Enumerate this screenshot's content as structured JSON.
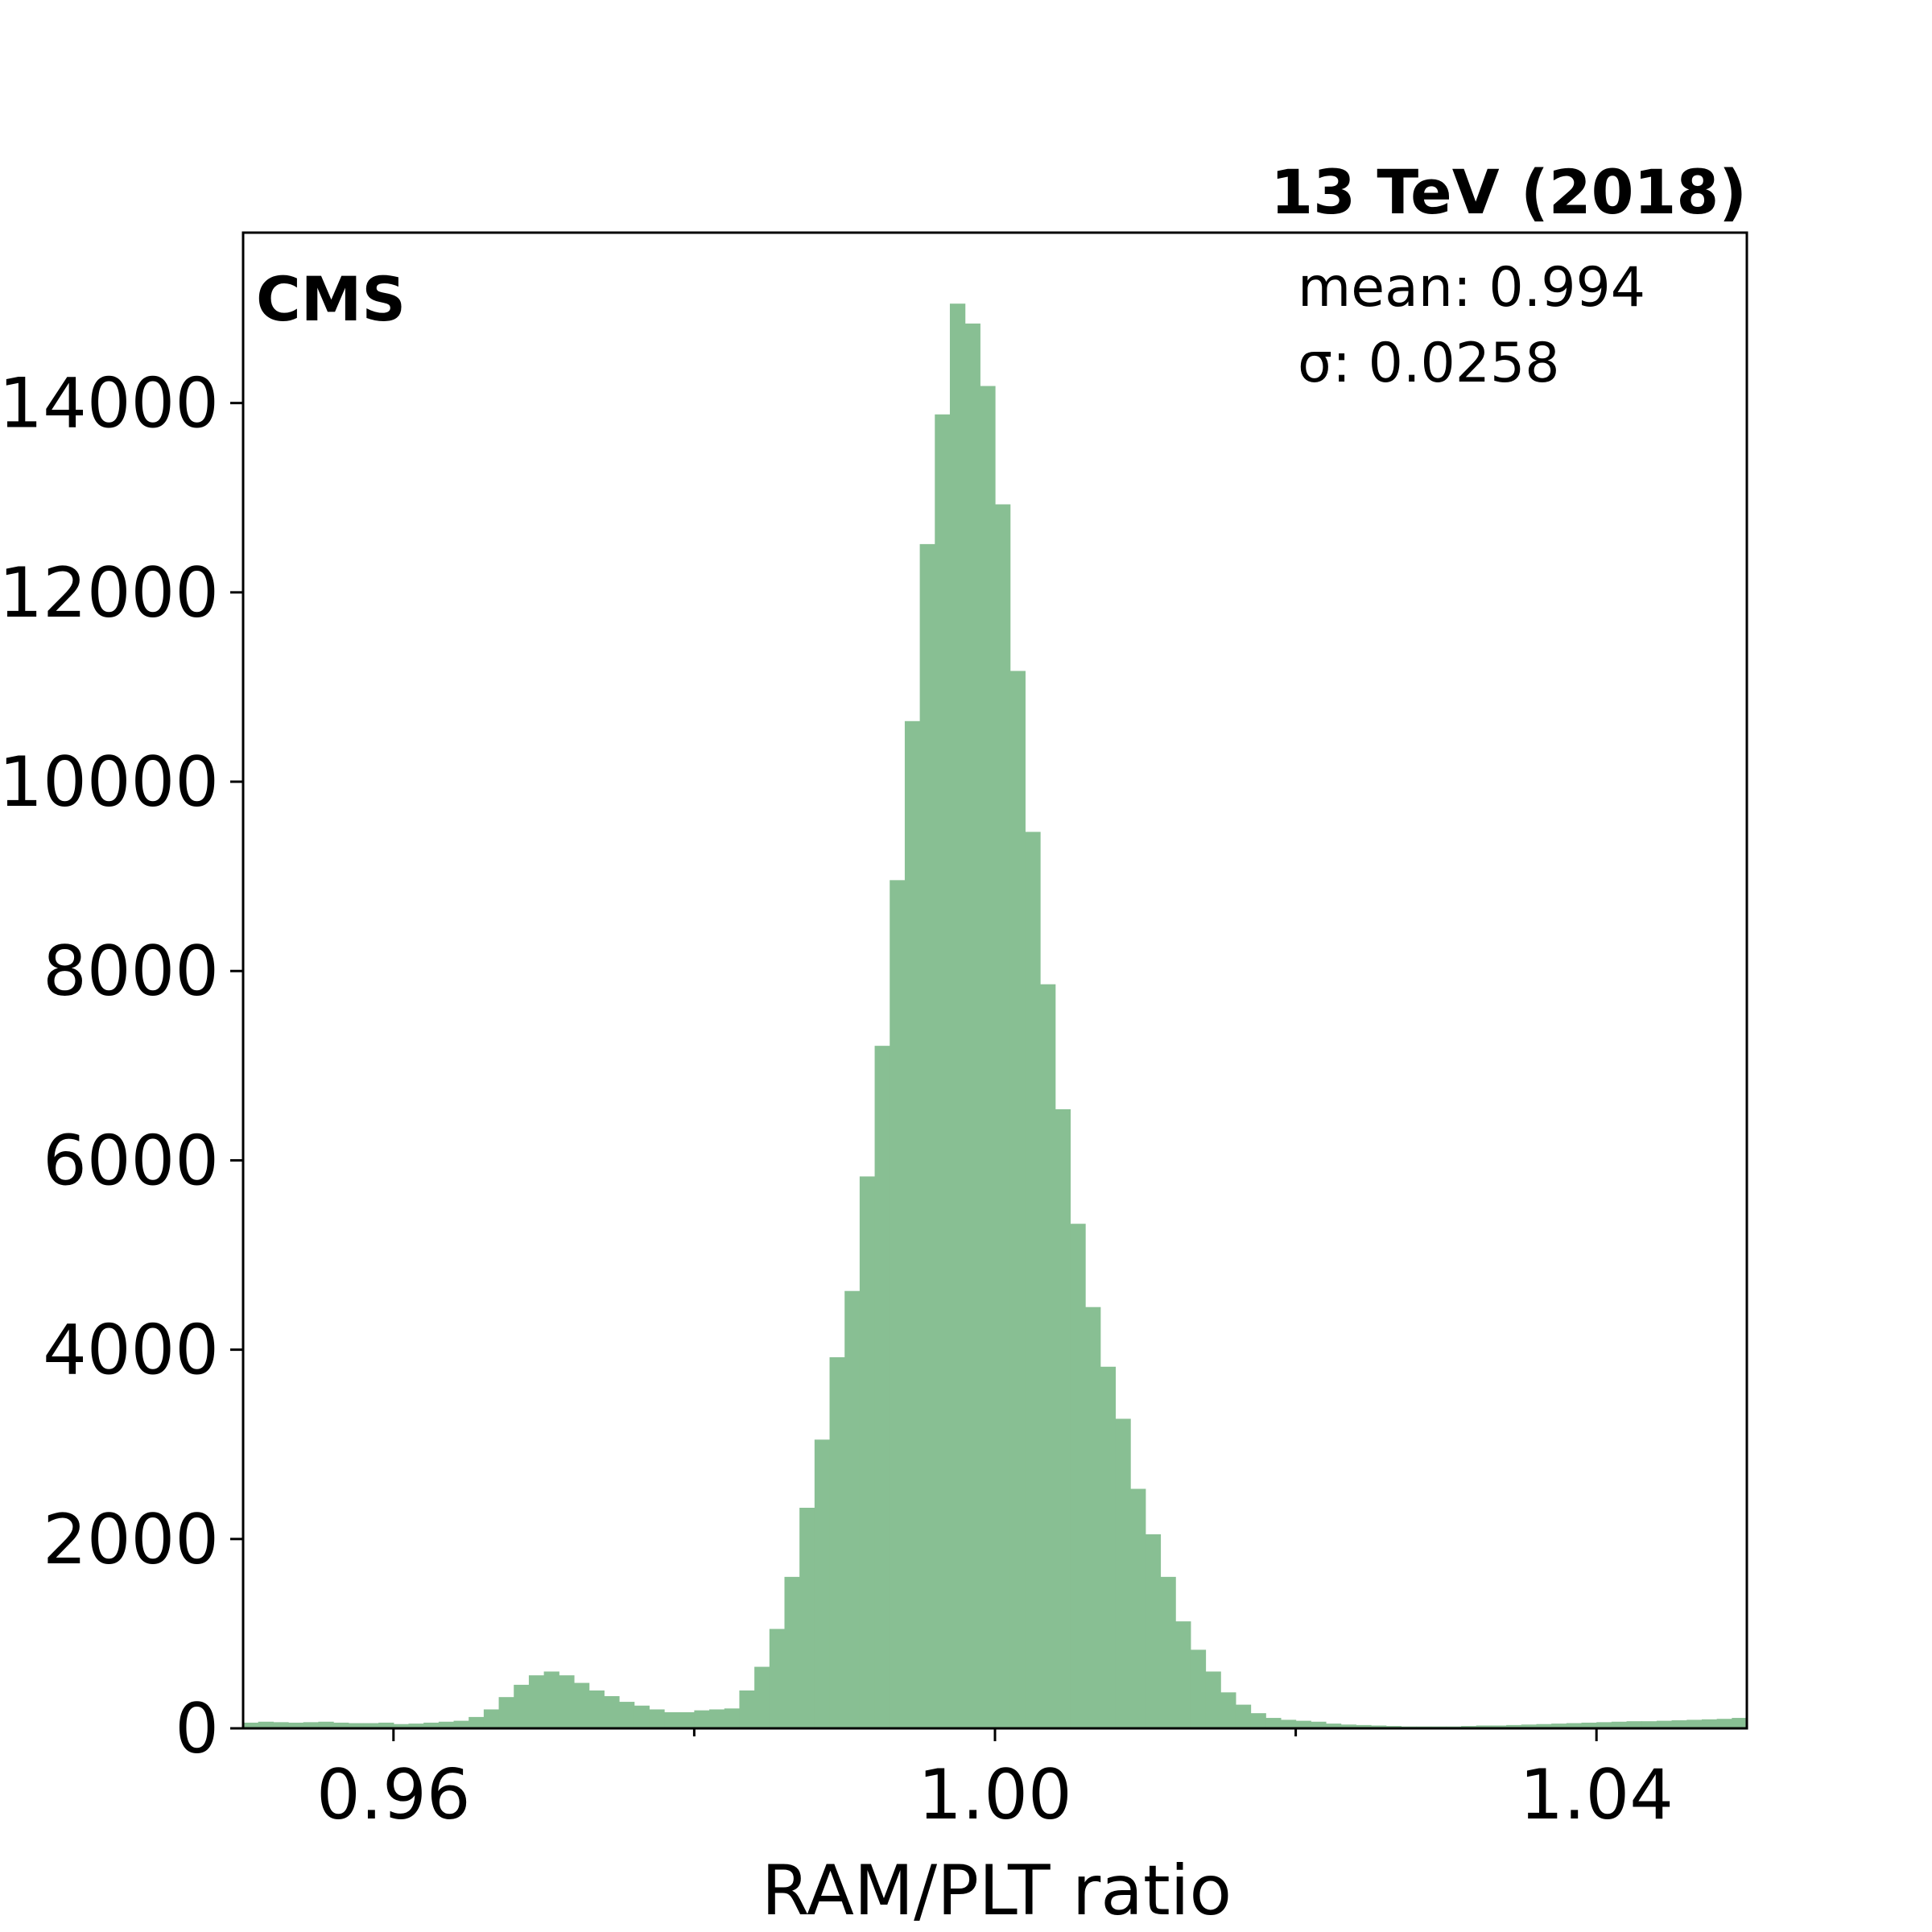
{
  "chart_data": {
    "type": "bar",
    "title": "",
    "header_right": "13 TeV (2018)",
    "experiment_label": "CMS",
    "stats": {
      "mean_text": "mean: 0.994",
      "sigma_text": "σ: 0.0258"
    },
    "xlabel": "RAM/PLT ratio",
    "ylabel": "",
    "xlim": [
      0.95,
      1.05
    ],
    "ylim": [
      0,
      15800
    ],
    "bin_width": 0.001,
    "bin_start": 0.95,
    "x_ticks": [
      0.96,
      1.0,
      1.04
    ],
    "x_tick_labels": [
      "0.96",
      "1.00",
      "1.04"
    ],
    "x_minor_ticks": [
      0.98,
      1.02
    ],
    "y_ticks": [
      0,
      2000,
      4000,
      6000,
      8000,
      10000,
      12000,
      14000
    ],
    "y_tick_labels": [
      "0",
      "2000",
      "4000",
      "6000",
      "8000",
      "10000",
      "12000",
      "14000"
    ],
    "grid": false,
    "colors": {
      "bars": "#88bf93",
      "axes": "#000000",
      "background": "#ffffff"
    },
    "values": [
      60,
      70,
      65,
      60,
      65,
      70,
      60,
      55,
      55,
      60,
      45,
      50,
      60,
      70,
      80,
      120,
      200,
      330,
      460,
      560,
      600,
      560,
      480,
      400,
      340,
      280,
      240,
      200,
      170,
      170,
      190,
      200,
      210,
      400,
      650,
      1050,
      1600,
      2330,
      3050,
      3920,
      4620,
      5830,
      7210,
      8960,
      10640,
      12510,
      13880,
      15050,
      14840,
      14180,
      12930,
      11170,
      9470,
      7860,
      6540,
      5330,
      4450,
      3820,
      3270,
      2530,
      2050,
      1600,
      1130,
      830,
      600,
      380,
      250,
      160,
      110,
      90,
      80,
      70,
      50,
      40,
      35,
      30,
      25,
      20,
      20,
      20,
      20,
      25,
      30,
      30,
      35,
      40,
      45,
      50,
      55,
      60,
      65,
      70,
      75,
      75,
      80,
      85,
      90,
      95,
      100,
      110
    ]
  }
}
